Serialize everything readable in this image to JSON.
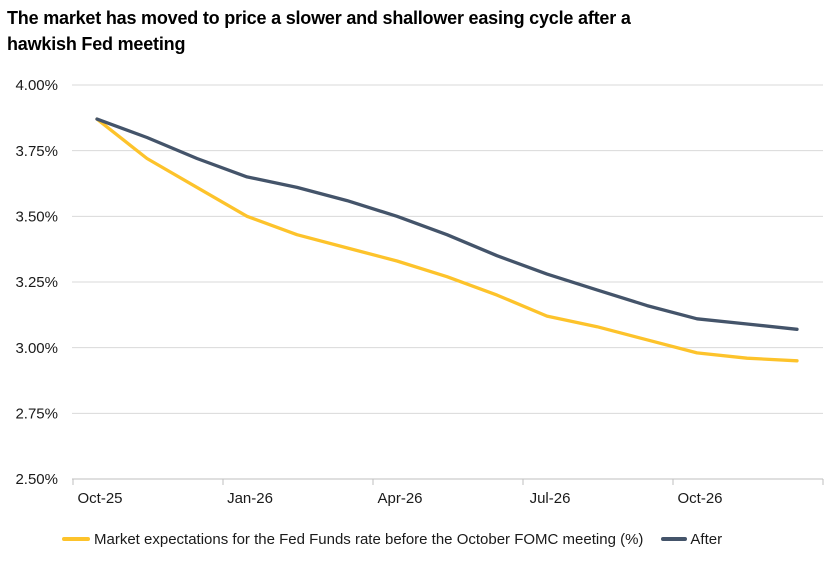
{
  "title": {
    "line1": "The market has moved to price a slower and shallower easing cycle after a",
    "line2": "hawkish Fed meeting"
  },
  "legend": {
    "before_label": "Market expectations for the Fed Funds rate before the October FOMC meeting (%)",
    "after_label": "After"
  },
  "colors": {
    "before_line": "#FDC32B",
    "after_line": "#44546A",
    "gridline": "#D9D9D9",
    "axis": "#BFBFBF",
    "tick_text": "#1A1A1A",
    "title_text": "#000000"
  },
  "chart_data": {
    "type": "line",
    "categories": [
      "Oct-25",
      "Nov-25",
      "Dec-25",
      "Jan-26",
      "Feb-26",
      "Mar-26",
      "Apr-26",
      "May-26",
      "Jun-26",
      "Jul-26",
      "Aug-26",
      "Sep-26",
      "Oct-26",
      "Nov-26",
      "Dec-26"
    ],
    "series": [
      {
        "name": "Market expectations for the Fed Funds rate before the October FOMC meeting (%)",
        "color": "#FDC32B",
        "values": [
          3.87,
          3.72,
          3.61,
          3.5,
          3.43,
          3.38,
          3.33,
          3.27,
          3.2,
          3.12,
          3.08,
          3.03,
          2.98,
          2.96,
          2.95
        ]
      },
      {
        "name": "After",
        "color": "#44546A",
        "values": [
          3.87,
          3.8,
          3.72,
          3.65,
          3.61,
          3.56,
          3.5,
          3.43,
          3.35,
          3.28,
          3.22,
          3.16,
          3.11,
          3.09,
          3.07
        ]
      }
    ],
    "title": "The market has moved to price a slower and shallower easing cycle after a hawkish Fed meeting",
    "xlabel": "",
    "ylabel": "",
    "ylim": [
      2.5,
      4.0
    ],
    "ytick_step": 0.25,
    "ytick_labels": [
      "4.00%",
      "3.75%",
      "3.50%",
      "3.25%",
      "3.00%",
      "2.75%",
      "2.50%"
    ],
    "xtick_labels": [
      "Oct-25",
      "Jan-26",
      "Apr-26",
      "Jul-26",
      "Oct-26"
    ],
    "grid": "horizontal",
    "legend_position": "bottom"
  }
}
